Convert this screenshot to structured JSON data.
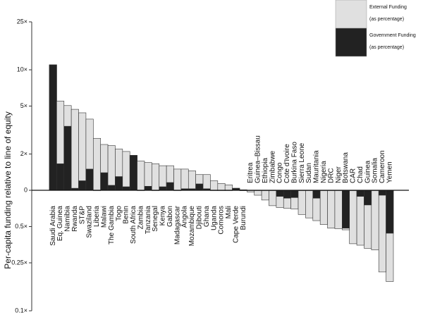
{
  "chart_data": {
    "type": "bar",
    "y_label": "Per-capita funding relative to line of equity",
    "log_scale": true,
    "baseline": 1,
    "ylim": [
      0.1,
      25
    ],
    "yticks": [
      {
        "value": 0.1,
        "label": "0.1×"
      },
      {
        "value": 0.25,
        "label": "0.25×"
      },
      {
        "value": 0.5,
        "label": "0.5×"
      },
      {
        "value": 1,
        "label": "0"
      },
      {
        "value": 2,
        "label": "2×"
      },
      {
        "value": 5,
        "label": "5×"
      },
      {
        "value": 10,
        "label": "10×"
      },
      {
        "value": 25,
        "label": "25×"
      }
    ],
    "categories": [
      "Saudi Arabia",
      "Eq. Guinea",
      "Namibia",
      "Rwanda",
      "ST&P",
      "Swaziland",
      "Liberia",
      "Malawi",
      "The Gambia",
      "Togo",
      "Benin",
      "South Africa",
      "Zambia",
      "Tanzania",
      "Senegal",
      "Kenya",
      "Gabon",
      "Madagascar",
      "Angola",
      "Mozambique",
      "Djibouti",
      "Ghana",
      "Uganda",
      "Comoros",
      "Mali",
      "Cape Verde",
      "Burundi",
      "Eritrea",
      "Guinea–Bissau",
      "Ethiopia",
      "Zimbabwe",
      "Congo",
      "Cote d'Ivoire",
      "Burkina Faso",
      "Sierra Leone",
      "Sudan",
      "Mauritania",
      "Nigeria",
      "DRC",
      "Niger",
      "Botswana",
      "CAR",
      "Chad",
      "Guinea",
      "Somalia",
      "Cameroon",
      "Yemen"
    ],
    "label_colors": [
      "#e8262a",
      "#111",
      "#e8262a",
      "#111",
      "#e8262a",
      "#e8262a",
      "#111",
      "#111",
      "#111",
      "#111",
      "#111",
      "#e8262a",
      "#111",
      "#111",
      "#111",
      "#111",
      "#111",
      "#111",
      "#111",
      "#111",
      "#111",
      "#111",
      "#111",
      "#111",
      "#111",
      "#e8262a",
      "#111",
      "#111",
      "#111",
      "#111",
      "#111",
      "#111",
      "#111",
      "#111",
      "#111",
      "#111",
      "#111",
      "#111",
      "#111",
      "#111",
      "#e8262a",
      "#111",
      "#111",
      "#111",
      "#111",
      "#111",
      "#111"
    ],
    "series": [
      {
        "name": "External Funding",
        "note": "(as percentage)",
        "color": "#e0e0e0",
        "values": [
          11,
          5.5,
          5.05,
          4.7,
          4.4,
          3.9,
          2.7,
          2.4,
          2.35,
          2.2,
          2.1,
          1.95,
          1.75,
          1.7,
          1.66,
          1.6,
          1.6,
          1.5,
          1.5,
          1.45,
          1.35,
          1.35,
          1.2,
          1.14,
          1.11,
          1.04,
          1.01,
          0.97,
          0.91,
          0.83,
          0.745,
          0.72,
          0.71,
          0.7,
          0.63,
          0.59,
          0.56,
          0.52,
          0.485,
          0.48,
          0.47,
          0.36,
          0.35,
          0.33,
          0.32,
          0.21,
          0.175
        ]
      },
      {
        "name": "Government Funding",
        "note": "(as percentage)",
        "color": "#222222",
        "values": [
          11,
          1.66,
          3.4,
          1.04,
          1.2,
          1.5,
          1,
          1.4,
          1.1,
          1.3,
          1.07,
          1.95,
          1,
          1.08,
          1,
          1.07,
          1.16,
          1,
          1.03,
          1.03,
          1.13,
          1.03,
          1,
          1,
          1,
          1.04,
          1,
          1,
          1,
          1,
          1,
          0.89,
          0.86,
          0.87,
          1,
          1,
          0.86,
          1,
          1,
          1,
          0.485,
          1,
          0.89,
          0.755,
          1,
          0.91,
          0.44
        ]
      }
    ]
  }
}
